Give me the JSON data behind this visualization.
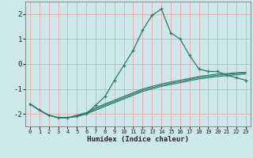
{
  "xlabel": "Humidex (Indice chaleur)",
  "bg_color": "#cce8e8",
  "grid_color": "#e8b0b0",
  "line_color": "#2a7a6a",
  "xlim": [
    -0.5,
    23.5
  ],
  "ylim": [
    -2.5,
    2.5
  ],
  "xticks": [
    0,
    1,
    2,
    3,
    4,
    5,
    6,
    7,
    8,
    9,
    10,
    11,
    12,
    13,
    14,
    15,
    16,
    17,
    18,
    19,
    20,
    21,
    22,
    23
  ],
  "yticks": [
    -2,
    -1,
    0,
    1,
    2
  ],
  "series": [
    {
      "x": [
        0,
        1,
        2,
        3,
        4,
        5,
        6,
        7,
        8,
        9,
        10,
        11,
        12,
        13,
        14,
        15,
        16,
        17,
        18,
        19,
        20,
        21,
        22,
        23
      ],
      "y": [
        -1.6,
        -1.85,
        -2.05,
        -2.15,
        -2.15,
        -2.1,
        -2.0,
        -1.65,
        -1.3,
        -0.65,
        -0.05,
        0.55,
        1.35,
        1.95,
        2.2,
        1.25,
        1.0,
        0.35,
        -0.2,
        -0.3,
        -0.3,
        -0.45,
        -0.55,
        -0.65
      ],
      "marker": "+"
    },
    {
      "x": [
        0,
        1,
        2,
        3,
        4,
        5,
        6,
        7,
        8,
        9,
        10,
        11,
        12,
        13,
        14,
        15,
        16,
        17,
        18,
        19,
        20,
        21,
        22,
        23
      ],
      "y": [
        -1.6,
        -1.85,
        -2.05,
        -2.15,
        -2.15,
        -2.05,
        -1.95,
        -1.75,
        -1.6,
        -1.45,
        -1.3,
        -1.15,
        -1.0,
        -0.9,
        -0.8,
        -0.72,
        -0.65,
        -0.58,
        -0.5,
        -0.45,
        -0.4,
        -0.38,
        -0.35,
        -0.33
      ],
      "marker": null
    },
    {
      "x": [
        0,
        1,
        2,
        3,
        4,
        5,
        6,
        7,
        8,
        9,
        10,
        11,
        12,
        13,
        14,
        15,
        16,
        17,
        18,
        19,
        20,
        21,
        22,
        23
      ],
      "y": [
        -1.6,
        -1.85,
        -2.05,
        -2.15,
        -2.15,
        -2.1,
        -2.0,
        -1.85,
        -1.7,
        -1.55,
        -1.4,
        -1.25,
        -1.1,
        -1.0,
        -0.9,
        -0.82,
        -0.75,
        -0.67,
        -0.6,
        -0.55,
        -0.5,
        -0.47,
        -0.43,
        -0.4
      ],
      "marker": null
    },
    {
      "x": [
        0,
        1,
        2,
        3,
        4,
        5,
        6,
        7,
        8,
        9,
        10,
        11,
        12,
        13,
        14,
        15,
        16,
        17,
        18,
        19,
        20,
        21,
        22,
        23
      ],
      "y": [
        -1.6,
        -1.85,
        -2.05,
        -2.15,
        -2.15,
        -2.08,
        -1.98,
        -1.8,
        -1.65,
        -1.5,
        -1.35,
        -1.2,
        -1.05,
        -0.95,
        -0.85,
        -0.77,
        -0.7,
        -0.62,
        -0.55,
        -0.5,
        -0.45,
        -0.42,
        -0.38,
        -0.35
      ],
      "marker": null
    }
  ]
}
